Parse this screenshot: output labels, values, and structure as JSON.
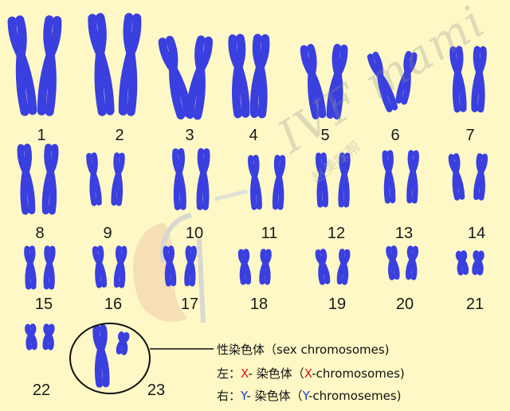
{
  "colors": {
    "background": "#fdf8c6",
    "chromosome": "#3a3fe0",
    "x_label": "#e01818",
    "y_label": "#1840e0",
    "outline": "#111111"
  },
  "numbers": [
    "1",
    "2",
    "3",
    "4",
    "5",
    "6",
    "7",
    "8",
    "9",
    "10",
    "11",
    "12",
    "13",
    "14",
    "15",
    "16",
    "17",
    "18",
    "19",
    "20",
    "21",
    "22",
    "23"
  ],
  "legend": {
    "sex_line_cn": "性染色体",
    "sex_line_en": "（sex chromosomes)",
    "left_prefix": "左：",
    "left_letter": "X",
    "left_cn": "- 染色体（",
    "left_x": "X",
    "left_en": "-chromosomes)",
    "right_prefix": "右：",
    "right_letter": "Y",
    "right_cn": "- 染色体（",
    "right_y": "Y",
    "right_en": "-chromosemes)"
  },
  "watermark": {
    "brand": "IVF mami",
    "brand_cn": "赵美咪帮",
    "logo_icon": "face-profile-logo-icon"
  }
}
